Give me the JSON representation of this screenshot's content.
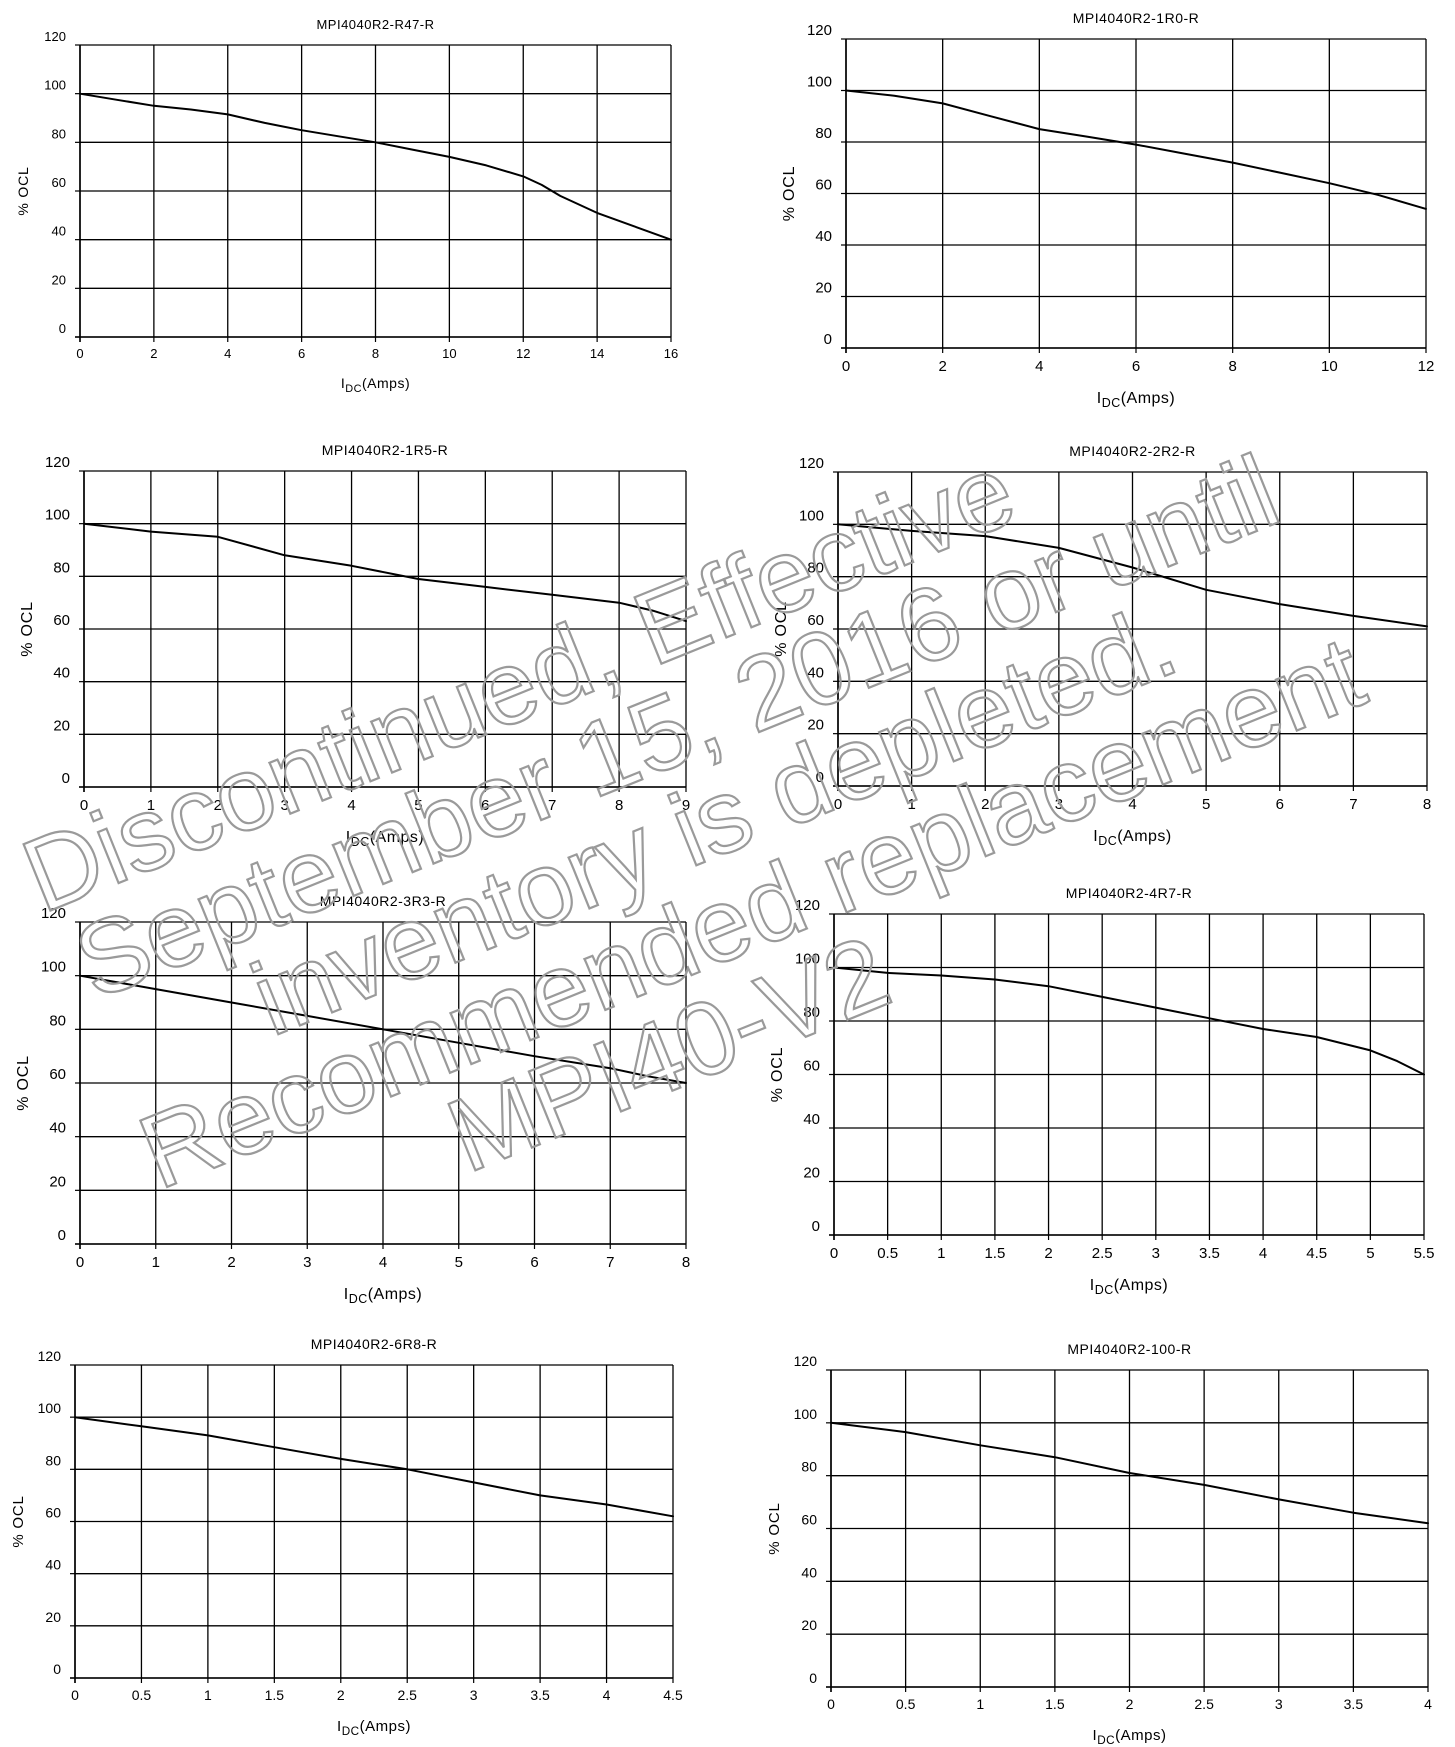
{
  "chart_data": [
    {
      "type": "line",
      "title": "MPI4040R2-R47-R",
      "xlabel_main": "I",
      "xlabel_sub": "DC",
      "xlabel_tail": "(Amps)",
      "ylabel": "% OCL",
      "xlim": [
        0,
        16
      ],
      "ylim": [
        0,
        120
      ],
      "xticks": [
        0,
        2,
        4,
        6,
        8,
        10,
        12,
        14,
        16
      ],
      "xtick_labels": [
        "0",
        "2",
        "4",
        "6",
        "8",
        "10",
        "12",
        "14",
        "16"
      ],
      "yticks": [
        0,
        20,
        40,
        60,
        80,
        100,
        120
      ],
      "ytick_labels": [
        "0",
        "20",
        "40",
        "60",
        "80",
        "100",
        "120"
      ],
      "grid": true,
      "series": [
        {
          "x": [
            0,
            1,
            2,
            3,
            4,
            5,
            6,
            7,
            8,
            9,
            10,
            11,
            12,
            12.5,
            13,
            14,
            15,
            16
          ],
          "y": [
            100,
            97.5,
            95,
            93.5,
            91.5,
            88,
            85,
            82.5,
            80,
            77,
            74,
            70.5,
            66,
            62.5,
            58,
            51,
            45.5,
            40
          ]
        }
      ]
    },
    {
      "type": "line",
      "title": "MPI4040R2-1R0-R",
      "xlabel_main": "I",
      "xlabel_sub": "DC",
      "xlabel_tail": "(Amps)",
      "ylabel": "% OCL",
      "xlim": [
        0,
        12
      ],
      "ylim": [
        0,
        120
      ],
      "xticks": [
        0,
        2,
        4,
        6,
        8,
        10,
        12
      ],
      "xtick_labels": [
        "0",
        "2",
        "4",
        "6",
        "8",
        "10",
        "12"
      ],
      "yticks": [
        0,
        20,
        40,
        60,
        80,
        100,
        120
      ],
      "ytick_labels": [
        "0",
        "20",
        "40",
        "60",
        "80",
        "100",
        "120"
      ],
      "grid": true,
      "series": [
        {
          "x": [
            0,
            1,
            2,
            3,
            4,
            5,
            6,
            7,
            8,
            9,
            10,
            11,
            12
          ],
          "y": [
            100,
            98,
            95,
            90,
            85,
            82,
            79,
            75.5,
            72,
            68,
            64,
            59.5,
            54
          ]
        }
      ]
    },
    {
      "type": "line",
      "title": "MPI4040R2-1R5-R",
      "xlabel_main": "I",
      "xlabel_sub": "DC",
      "xlabel_tail": "(Amps)",
      "ylabel": "% OCL",
      "xlim": [
        0,
        9
      ],
      "ylim": [
        0,
        120
      ],
      "xticks": [
        0,
        1,
        2,
        3,
        4,
        5,
        6,
        7,
        8,
        9
      ],
      "xtick_labels": [
        "0",
        "1",
        "2",
        "3",
        "4",
        "5",
        "6",
        "7",
        "8",
        "9"
      ],
      "yticks": [
        0,
        20,
        40,
        60,
        80,
        100,
        120
      ],
      "ytick_labels": [
        "0",
        "20",
        "40",
        "60",
        "80",
        "100",
        "120"
      ],
      "grid": true,
      "series": [
        {
          "x": [
            0,
            1,
            2,
            3,
            4,
            5,
            6,
            7,
            7.5,
            8,
            8.5,
            9
          ],
          "y": [
            100,
            97,
            95,
            88,
            84,
            79,
            76,
            73,
            71.5,
            70,
            67,
            63
          ]
        }
      ]
    },
    {
      "type": "line",
      "title": "MPI4040R2-2R2-R",
      "xlabel_main": "I",
      "xlabel_sub": "DC",
      "xlabel_tail": "(Amps)",
      "ylabel": "% OCL",
      "xlim": [
        0,
        8
      ],
      "ylim": [
        0,
        120
      ],
      "xticks": [
        0,
        1,
        2,
        3,
        4,
        5,
        6,
        7,
        8
      ],
      "xtick_labels": [
        "0",
        "1",
        "2",
        "3",
        "4",
        "5",
        "6",
        "7",
        "8"
      ],
      "yticks": [
        0,
        20,
        40,
        60,
        80,
        100,
        120
      ],
      "ytick_labels": [
        "0",
        "20",
        "40",
        "60",
        "80",
        "100",
        "120"
      ],
      "grid": true,
      "series": [
        {
          "x": [
            0,
            1,
            2,
            3,
            4,
            5,
            6,
            7,
            8
          ],
          "y": [
            100,
            97.5,
            95.5,
            91,
            83.5,
            75,
            69.5,
            65,
            61
          ]
        }
      ]
    },
    {
      "type": "line",
      "title": "MPI4040R2-3R3-R",
      "xlabel_main": "I",
      "xlabel_sub": "DC",
      "xlabel_tail": "(Amps)",
      "ylabel": "% OCL",
      "xlim": [
        0,
        8
      ],
      "ylim": [
        0,
        120
      ],
      "xticks": [
        0,
        1,
        2,
        3,
        4,
        5,
        6,
        7,
        8
      ],
      "xtick_labels": [
        "0",
        "1",
        "2",
        "3",
        "4",
        "5",
        "6",
        "7",
        "8"
      ],
      "yticks": [
        0,
        20,
        40,
        60,
        80,
        100,
        120
      ],
      "ytick_labels": [
        "0",
        "20",
        "40",
        "60",
        "80",
        "100",
        "120"
      ],
      "grid": true,
      "series": [
        {
          "x": [
            0,
            1,
            2,
            3,
            4,
            5,
            6,
            7,
            7.5,
            8
          ],
          "y": [
            100,
            95,
            90,
            85,
            80,
            75,
            70,
            65.5,
            62.5,
            60
          ]
        }
      ]
    },
    {
      "type": "line",
      "title": "MPI4040R2-4R7-R",
      "xlabel_main": "I",
      "xlabel_sub": "DC",
      "xlabel_tail": "(Amps)",
      "ylabel": "% OCL",
      "xlim": [
        0,
        5.5
      ],
      "ylim": [
        0,
        120
      ],
      "xticks": [
        0,
        0.5,
        1,
        1.5,
        2,
        2.5,
        3,
        3.5,
        4,
        4.5,
        5,
        5.5
      ],
      "xtick_labels": [
        "0",
        "0.5",
        "1",
        "1.5",
        "2",
        "2.5",
        "3",
        "3.5",
        "4",
        "4.5",
        "5",
        "5.5"
      ],
      "yticks": [
        0,
        20,
        40,
        60,
        80,
        100,
        120
      ],
      "ytick_labels": [
        "0",
        "20",
        "40",
        "60",
        "80",
        "100",
        "120"
      ],
      "grid": true,
      "series": [
        {
          "x": [
            0,
            0.5,
            1,
            1.5,
            2,
            2.5,
            3,
            3.5,
            4,
            4.5,
            5,
            5.25,
            5.5
          ],
          "y": [
            100,
            98,
            97,
            95.5,
            93,
            89,
            85,
            81,
            77,
            74,
            69,
            65,
            60
          ]
        }
      ]
    },
    {
      "type": "line",
      "title": "MPI4040R2-6R8-R",
      "xlabel_main": "I",
      "xlabel_sub": "DC",
      "xlabel_tail": "(Amps)",
      "ylabel": "% OCL",
      "xlim": [
        0,
        4.5
      ],
      "ylim": [
        0,
        120
      ],
      "xticks": [
        0,
        0.5,
        1,
        1.5,
        2,
        2.5,
        3,
        3.5,
        4,
        4.5
      ],
      "xtick_labels": [
        "0",
        "0.5",
        "1",
        "1.5",
        "2",
        "2.5",
        "3",
        "3.5",
        "4",
        "4.5"
      ],
      "yticks": [
        0,
        20,
        40,
        60,
        80,
        100,
        120
      ],
      "ytick_labels": [
        "0",
        "20",
        "40",
        "60",
        "80",
        "100",
        "120"
      ],
      "grid": true,
      "series": [
        {
          "x": [
            0,
            0.5,
            1,
            1.5,
            2,
            2.5,
            3,
            3.5,
            4,
            4.5
          ],
          "y": [
            100,
            96.5,
            93,
            88.5,
            84,
            80,
            75,
            70,
            66.5,
            62
          ]
        }
      ]
    },
    {
      "type": "line",
      "title": "MPI4040R2-100-R",
      "xlabel_main": "I",
      "xlabel_sub": "DC",
      "xlabel_tail": "(Amps)",
      "ylabel": "% OCL",
      "xlim": [
        0,
        4
      ],
      "ylim": [
        0,
        120
      ],
      "xticks": [
        0,
        0.5,
        1,
        1.5,
        2,
        2.5,
        3,
        3.5,
        4
      ],
      "xtick_labels": [
        "0",
        "0.5",
        "1",
        "1.5",
        "2",
        "2.5",
        "3",
        "3.5",
        "4"
      ],
      "yticks": [
        0,
        20,
        40,
        60,
        80,
        100,
        120
      ],
      "ytick_labels": [
        "0",
        "20",
        "40",
        "60",
        "80",
        "100",
        "120"
      ],
      "grid": true,
      "series": [
        {
          "x": [
            0,
            0.5,
            1,
            1.5,
            2,
            2.5,
            3,
            3.5,
            4
          ],
          "y": [
            100,
            96.5,
            91.5,
            87,
            81,
            76.5,
            71,
            66,
            62
          ]
        }
      ]
    }
  ],
  "watermark": {
    "lines": [
      "Discontinued, Effective",
      "September 15, 2016 or until",
      "inventory is depleted.",
      "Recommended replacement",
      "MPI40-V2"
    ],
    "color": "#9a9a9a"
  }
}
